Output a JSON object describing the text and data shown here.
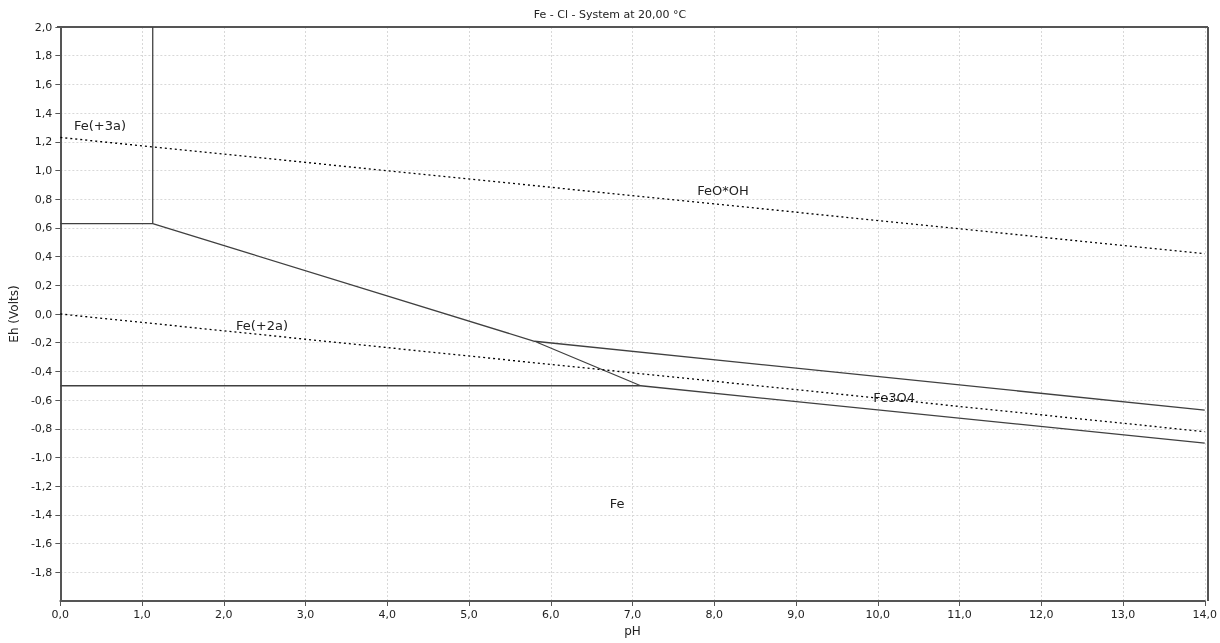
{
  "chart_data": {
    "type": "line",
    "title": "Fe - Cl - System at 20,00 °C",
    "xlabel": "pH",
    "ylabel": "Eh (Volts)",
    "xlim": [
      0,
      14
    ],
    "ylim": [
      -2,
      2
    ],
    "xticks": [
      {
        "value": 0,
        "label": "0,0"
      },
      {
        "value": 1,
        "label": "1,0"
      },
      {
        "value": 2,
        "label": "2,0"
      },
      {
        "value": 3,
        "label": "3,0"
      },
      {
        "value": 4,
        "label": "4,0"
      },
      {
        "value": 5,
        "label": "5,0"
      },
      {
        "value": 6,
        "label": "6,0"
      },
      {
        "value": 7,
        "label": "7,0"
      },
      {
        "value": 8,
        "label": "8,0"
      },
      {
        "value": 9,
        "label": "9,0"
      },
      {
        "value": 10,
        "label": "10,0"
      },
      {
        "value": 11,
        "label": "11,0"
      },
      {
        "value": 12,
        "label": "12,0"
      },
      {
        "value": 13,
        "label": "13,0"
      },
      {
        "value": 14,
        "label": "14,0"
      }
    ],
    "yticks": [
      {
        "value": -1.8,
        "label": "-1,8"
      },
      {
        "value": -1.6,
        "label": "-1,6"
      },
      {
        "value": -1.4,
        "label": "-1,4"
      },
      {
        "value": -1.2,
        "label": "-1,2"
      },
      {
        "value": -1,
        "label": "-1,0"
      },
      {
        "value": -0.8,
        "label": "-0,8"
      },
      {
        "value": -0.6,
        "label": "-0,6"
      },
      {
        "value": -0.4,
        "label": "-0,4"
      },
      {
        "value": -0.2,
        "label": "-0,2"
      },
      {
        "value": 0,
        "label": "0,0"
      },
      {
        "value": 0.2,
        "label": "0,2"
      },
      {
        "value": 0.4,
        "label": "0,4"
      },
      {
        "value": 0.6,
        "label": "0,6"
      },
      {
        "value": 0.8,
        "label": "0,8"
      },
      {
        "value": 1,
        "label": "1,0"
      },
      {
        "value": 1.2,
        "label": "1,2"
      },
      {
        "value": 1.4,
        "label": "1,4"
      },
      {
        "value": 1.6,
        "label": "1,6"
      },
      {
        "value": 1.8,
        "label": "1,8"
      },
      {
        "value": 2,
        "label": "2,0"
      }
    ],
    "grid": true,
    "marker": "none",
    "series": [
      {
        "x": [
          1.13,
          1.13,
          0,
          null,
          1.13,
          5.8,
          14,
          null,
          0,
          7.1,
          14,
          null,
          5.8,
          7.1
        ],
        "values": [
          2.0,
          0.63,
          0.63,
          null,
          0.63,
          -0.19,
          -0.67,
          null,
          -0.5,
          -0.5,
          -0.9,
          null,
          -0.19,
          -0.5
        ],
        "color": "#404040",
        "line_style": "solid"
      },
      {
        "x": [
          0,
          14
        ],
        "values": [
          1.23,
          0.42
        ],
        "color": "#000000",
        "line_style": "dotted"
      },
      {
        "x": [
          0,
          14
        ],
        "values": [
          0,
          -0.82
        ],
        "color": "#000000",
        "line_style": "dotted"
      }
    ],
    "annotations": [
      "Fe(+3a)",
      "FeO*OH",
      "Fe(+2a)",
      {
        "text": "Fe3O4",
        "x": 10.2,
        "y": -0.58
      },
      "Fe"
    ]
  }
}
